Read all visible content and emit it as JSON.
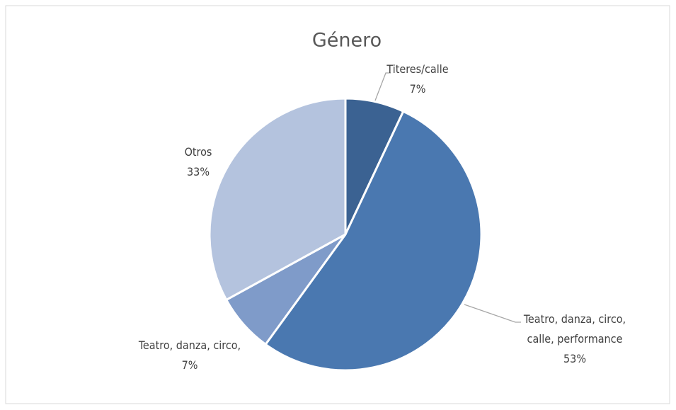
{
  "chart_data": {
    "type": "pie",
    "title": "Género",
    "categories": [
      "Titeres/calle",
      "Teatro, danza, circo, calle, performance",
      "Teatro, danza, circo,",
      "Otros"
    ],
    "values": [
      7,
      53,
      7,
      33
    ],
    "value_labels": [
      "7%",
      "53%",
      "7%",
      "33%"
    ],
    "colors": [
      "#3b6292",
      "#4a78b0",
      "#7f9bc9",
      "#b4c3de"
    ]
  }
}
